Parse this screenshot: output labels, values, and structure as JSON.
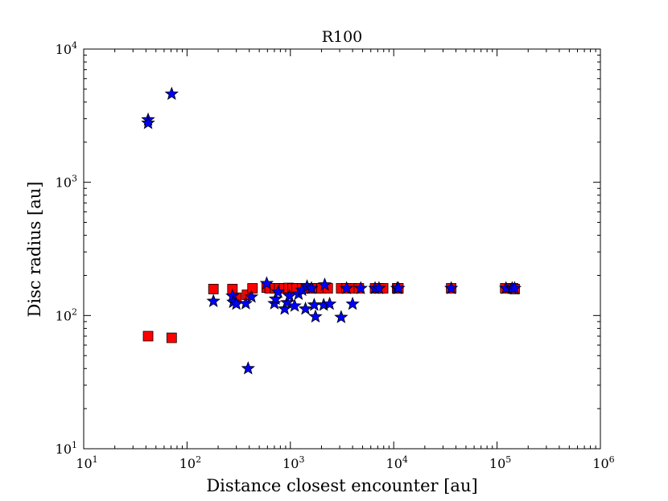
{
  "chart_data": {
    "type": "scatter",
    "title": "R100",
    "xlabel": "Distance closest encounter [au]",
    "ylabel": "Disc radius [au]",
    "xscale": "log",
    "yscale": "log",
    "xlim": [
      10,
      1000000
    ],
    "ylim": [
      10,
      10000
    ],
    "grid": false,
    "x_ticks": [
      {
        "base": "10",
        "exp": "1"
      },
      {
        "base": "10",
        "exp": "2"
      },
      {
        "base": "10",
        "exp": "3"
      },
      {
        "base": "10",
        "exp": "4"
      },
      {
        "base": "10",
        "exp": "5"
      },
      {
        "base": "10",
        "exp": "6"
      }
    ],
    "y_ticks": [
      {
        "base": "10",
        "exp": "1"
      },
      {
        "base": "10",
        "exp": "2"
      },
      {
        "base": "10",
        "exp": "3"
      },
      {
        "base": "10",
        "exp": "4"
      }
    ],
    "series": [
      {
        "marker": "square",
        "color": "#ff0000",
        "points": [
          [
            42,
            70
          ],
          [
            71,
            68
          ],
          [
            180,
            158
          ],
          [
            275,
            158
          ],
          [
            300,
            136
          ],
          [
            380,
            143
          ],
          [
            430,
            160
          ],
          [
            590,
            162
          ],
          [
            630,
            160
          ],
          [
            710,
            160
          ],
          [
            780,
            160
          ],
          [
            870,
            160
          ],
          [
            960,
            161
          ],
          [
            1050,
            160
          ],
          [
            1150,
            160
          ],
          [
            1300,
            160
          ],
          [
            1450,
            160
          ],
          [
            1600,
            160
          ],
          [
            1800,
            160
          ],
          [
            2000,
            160
          ],
          [
            2300,
            160
          ],
          [
            3100,
            160
          ],
          [
            3500,
            160
          ],
          [
            4000,
            160
          ],
          [
            4600,
            160
          ],
          [
            6600,
            160
          ],
          [
            7200,
            160
          ],
          [
            7900,
            160
          ],
          [
            10800,
            160
          ],
          [
            11100,
            160
          ],
          [
            36000,
            160
          ],
          [
            120000,
            160
          ],
          [
            135000,
            160
          ],
          [
            143000,
            160
          ],
          [
            148000,
            158
          ]
        ]
      },
      {
        "marker": "star",
        "color": "#0000ff",
        "points": [
          [
            42,
            2950
          ],
          [
            42,
            2780
          ],
          [
            71,
            4600
          ],
          [
            180,
            128
          ],
          [
            275,
            140
          ],
          [
            280,
            126
          ],
          [
            300,
            122
          ],
          [
            370,
            123
          ],
          [
            390,
            40
          ],
          [
            420,
            138
          ],
          [
            590,
            174
          ],
          [
            700,
            123
          ],
          [
            720,
            133
          ],
          [
            760,
            150
          ],
          [
            880,
            112
          ],
          [
            930,
            125
          ],
          [
            980,
            140
          ],
          [
            1100,
            118
          ],
          [
            1200,
            145
          ],
          [
            1300,
            155
          ],
          [
            1400,
            112
          ],
          [
            1450,
            165
          ],
          [
            1600,
            160
          ],
          [
            1700,
            120
          ],
          [
            1750,
            98
          ],
          [
            2100,
            120
          ],
          [
            2150,
            170
          ],
          [
            2400,
            122
          ],
          [
            3100,
            97
          ],
          [
            3500,
            160
          ],
          [
            4000,
            122
          ],
          [
            4800,
            160
          ],
          [
            6600,
            160
          ],
          [
            7200,
            160
          ],
          [
            10800,
            160
          ],
          [
            11100,
            160
          ],
          [
            36000,
            160
          ],
          [
            122000,
            160
          ],
          [
            140000,
            160
          ],
          [
            148000,
            160
          ]
        ]
      }
    ]
  }
}
